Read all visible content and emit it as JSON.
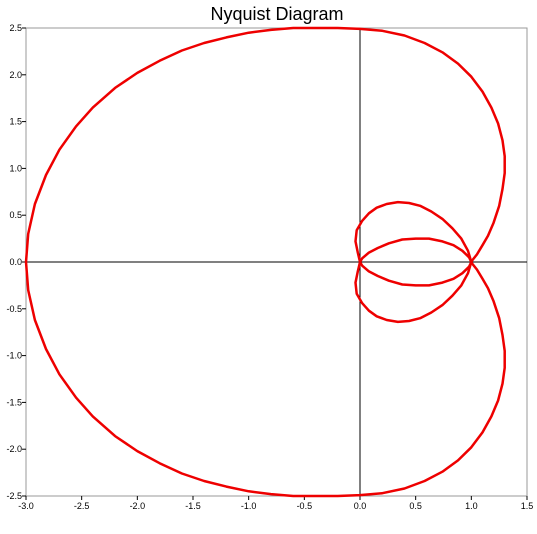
{
  "chart_data": {
    "type": "line",
    "title": "Nyquist Diagram",
    "xlabel": "",
    "ylabel": "",
    "xlim": [
      -3.0,
      1.5
    ],
    "ylim": [
      -2.5,
      2.5
    ],
    "grid": false,
    "legend": "none",
    "x_ticks": [
      "-3.0",
      "-2.5",
      "-2.0",
      "-1.5",
      "-1.0",
      "-0.5",
      "0.0",
      "0.5",
      "1.0",
      "1.5"
    ],
    "y_ticks": [
      "2.5",
      "2.0",
      "1.5",
      "1.0",
      "0.5",
      "0.0",
      "-0.5",
      "-1.0",
      "-1.5",
      "-2.0",
      "-2.5"
    ],
    "series": [
      {
        "color": "#ee0000",
        "x": [
          1.0,
          1.01,
          1.05,
          1.1,
          1.15,
          1.2,
          1.25,
          1.28,
          1.3,
          1.3,
          1.28,
          1.24,
          1.18,
          1.1,
          1.0,
          0.88,
          0.74,
          0.58,
          0.4,
          0.2,
          0.0,
          -0.2,
          -0.4,
          -0.6,
          -0.8,
          -1.0,
          -1.2,
          -1.4,
          -1.6,
          -1.8,
          -2.0,
          -2.2,
          -2.4,
          -2.55,
          -2.7,
          -2.82,
          -2.92,
          -2.98,
          -3.0,
          -2.98,
          -2.92,
          -2.82,
          -2.7,
          -2.55,
          -2.4,
          -2.2,
          -2.0,
          -1.8,
          -1.6,
          -1.4,
          -1.2,
          -1.0,
          -0.8,
          -0.6,
          -0.4,
          -0.2,
          0.0,
          0.2,
          0.4,
          0.58,
          0.74,
          0.88,
          1.0,
          1.1,
          1.18,
          1.24,
          1.28,
          1.3,
          1.3,
          1.28,
          1.25,
          1.2,
          1.15,
          1.1,
          1.05,
          1.01,
          1.0
        ],
        "y": [
          0.0,
          0.02,
          0.08,
          0.18,
          0.28,
          0.42,
          0.6,
          0.78,
          0.95,
          1.13,
          1.3,
          1.48,
          1.65,
          1.82,
          1.98,
          2.12,
          2.24,
          2.34,
          2.42,
          2.47,
          2.49,
          2.5,
          2.5,
          2.5,
          2.48,
          2.45,
          2.4,
          2.34,
          2.26,
          2.15,
          2.02,
          1.86,
          1.65,
          1.45,
          1.2,
          0.93,
          0.62,
          0.3,
          0.0,
          -0.3,
          -0.62,
          -0.93,
          -1.2,
          -1.45,
          -1.65,
          -1.86,
          -2.02,
          -2.15,
          -2.26,
          -2.34,
          -2.4,
          -2.45,
          -2.48,
          -2.5,
          -2.5,
          -2.5,
          -2.49,
          -2.47,
          -2.42,
          -2.34,
          -2.24,
          -2.12,
          -1.98,
          -1.82,
          -1.65,
          -1.48,
          -1.3,
          -1.13,
          -0.95,
          -0.78,
          -0.6,
          -0.42,
          -0.28,
          -0.18,
          -0.08,
          -0.02,
          0.0
        ]
      },
      {
        "color": "#ee0000",
        "x": [
          0.0,
          -0.02,
          -0.04,
          -0.03,
          0.02,
          0.08,
          0.15,
          0.24,
          0.34,
          0.44,
          0.54,
          0.64,
          0.74,
          0.83,
          0.91,
          0.97,
          1.0,
          0.98,
          0.92,
          0.84,
          0.74,
          0.62,
          0.5,
          0.38,
          0.26,
          0.16,
          0.08,
          0.02,
          0.0,
          0.02,
          0.08,
          0.16,
          0.26,
          0.38,
          0.5,
          0.62,
          0.74,
          0.84,
          0.92,
          0.98,
          1.0,
          0.97,
          0.91,
          0.83,
          0.74,
          0.64,
          0.54,
          0.44,
          0.34,
          0.24,
          0.15,
          0.08,
          0.02,
          -0.03,
          -0.04,
          -0.02,
          0.0
        ],
        "y": [
          0.0,
          0.1,
          0.22,
          0.34,
          0.44,
          0.52,
          0.58,
          0.62,
          0.64,
          0.63,
          0.6,
          0.54,
          0.46,
          0.36,
          0.25,
          0.12,
          0.0,
          0.05,
          0.12,
          0.18,
          0.22,
          0.25,
          0.25,
          0.24,
          0.2,
          0.15,
          0.1,
          0.04,
          0.0,
          -0.04,
          -0.1,
          -0.15,
          -0.2,
          -0.24,
          -0.25,
          -0.25,
          -0.22,
          -0.18,
          -0.12,
          -0.05,
          0.0,
          -0.12,
          -0.25,
          -0.36,
          -0.46,
          -0.54,
          -0.6,
          -0.63,
          -0.64,
          -0.62,
          -0.58,
          -0.52,
          -0.44,
          -0.34,
          -0.22,
          -0.1,
          0.0
        ]
      }
    ]
  }
}
